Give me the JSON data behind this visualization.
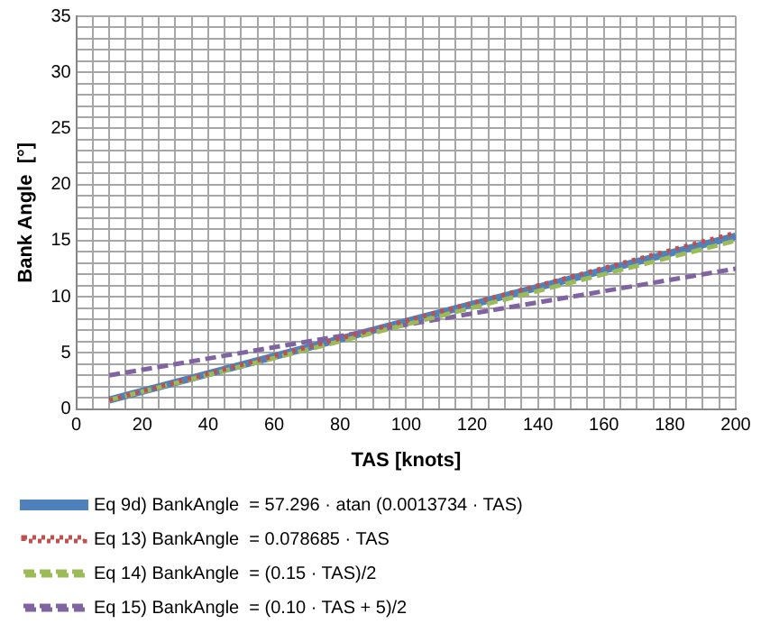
{
  "chart_data": {
    "type": "line",
    "xlabel": "TAS [knots]",
    "ylabel": "Bank Angle  [°]",
    "xlim": [
      0,
      200
    ],
    "ylim": [
      0,
      35
    ],
    "xticks": [
      0,
      {
        "value": 5,
        "label": null
      },
      {
        "value": 10,
        "label": null
      },
      {
        "value": 15,
        "label": null
      },
      20,
      {
        "value": 25,
        "label": null
      },
      {
        "value": 30,
        "label": null
      },
      {
        "value": 35,
        "label": null
      },
      40,
      {
        "value": 45,
        "label": null
      },
      {
        "value": 50,
        "label": null
      },
      {
        "value": 55,
        "label": null
      },
      60,
      {
        "value": 65,
        "label": null
      },
      {
        "value": 70,
        "label": null
      },
      {
        "value": 75,
        "label": null
      },
      80,
      {
        "value": 85,
        "label": null
      },
      {
        "value": 90,
        "label": null
      },
      {
        "value": 95,
        "label": null
      },
      100,
      {
        "value": 105,
        "label": null
      },
      {
        "value": 110,
        "label": null
      },
      {
        "value": 115,
        "label": null
      },
      120,
      {
        "value": 125,
        "label": null
      },
      {
        "value": 130,
        "label": null
      },
      {
        "value": 135,
        "label": null
      },
      140,
      {
        "value": 145,
        "label": null
      },
      {
        "value": 150,
        "label": null
      },
      {
        "value": 155,
        "label": null
      },
      160,
      {
        "value": 165,
        "label": null
      },
      {
        "value": 170,
        "label": null
      },
      {
        "value": 175,
        "label": null
      },
      180,
      {
        "value": 185,
        "label": null
      },
      {
        "value": 190,
        "label": null
      },
      {
        "value": 195,
        "label": null
      },
      200
    ],
    "yticks": [
      0,
      {
        "value": 1,
        "label": null
      },
      {
        "value": 2,
        "label": null
      },
      {
        "value": 3,
        "label": null
      },
      {
        "value": 4,
        "label": null
      },
      5,
      {
        "value": 6,
        "label": null
      },
      {
        "value": 7,
        "label": null
      },
      {
        "value": 8,
        "label": null
      },
      {
        "value": 9,
        "label": null
      },
      10,
      {
        "value": 11,
        "label": null
      },
      {
        "value": 12,
        "label": null
      },
      {
        "value": 13,
        "label": null
      },
      {
        "value": 14,
        "label": null
      },
      15,
      {
        "value": 16,
        "label": null
      },
      {
        "value": 17,
        "label": null
      },
      {
        "value": 18,
        "label": null
      },
      {
        "value": 19,
        "label": null
      },
      20,
      {
        "value": 21,
        "label": null
      },
      {
        "value": 22,
        "label": null
      },
      {
        "value": 23,
        "label": null
      },
      {
        "value": 24,
        "label": null
      },
      25,
      {
        "value": 26,
        "label": null
      },
      {
        "value": 27,
        "label": null
      },
      {
        "value": 28,
        "label": null
      },
      {
        "value": 29,
        "label": null
      },
      30,
      {
        "value": 31,
        "label": null
      },
      {
        "value": 32,
        "label": null
      },
      {
        "value": 33,
        "label": null
      },
      {
        "value": 34,
        "label": null
      },
      35
    ],
    "grid": true,
    "legend": "bottom",
    "marker": "none",
    "series": [
      {
        "name": "Eq 9d) BankAngle  = 57.296 · atan (0.0013734 · TAS)",
        "color": "#4f81bd",
        "line_style": "solid",
        "x": [
          10,
          100,
          200
        ],
        "values": [
          0.8,
          7.8,
          15.4
        ]
      },
      {
        "name": "Eq 13) BankAngle  = 0.078685 · TAS",
        "color": "#c0504d",
        "line_style": "dotted",
        "x": [
          10,
          200
        ],
        "values": [
          0.8,
          15.7
        ]
      },
      {
        "name": "Eq 14) BankAngle  = (0.15 · TAS)/2",
        "color": "#9bbb59",
        "line_style": "dashed",
        "x": [
          10,
          200
        ],
        "values": [
          0.8,
          15
        ]
      },
      {
        "name": "Eq 15) BankAngle  = (0.10 · TAS + 5)/2",
        "color": "#8064a2",
        "line_style": "dashed",
        "x": [
          10,
          200
        ],
        "values": [
          3,
          12.5
        ]
      }
    ]
  }
}
